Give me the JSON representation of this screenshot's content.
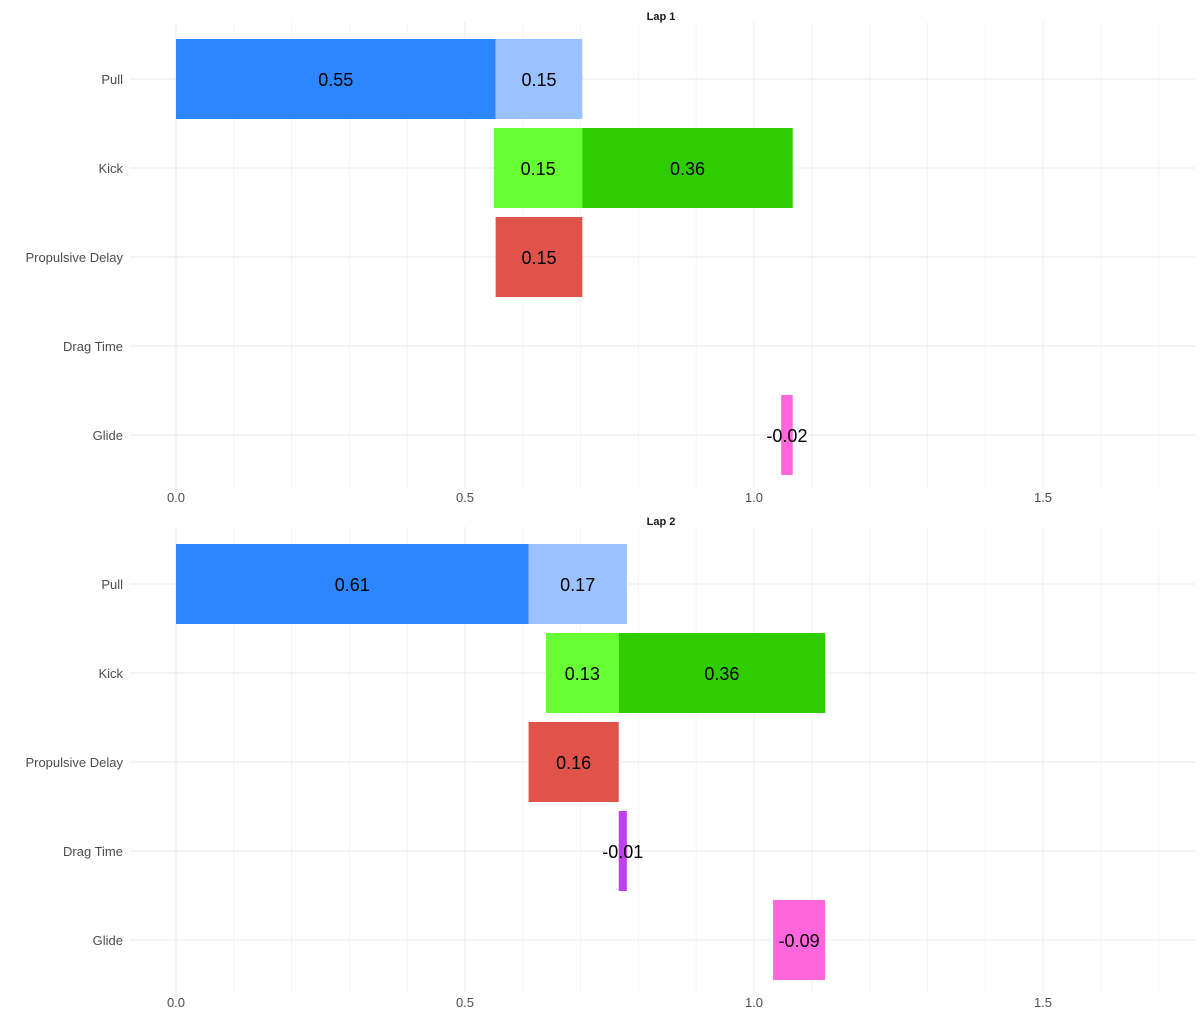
{
  "chart_data": [
    {
      "type": "bar",
      "orientation": "horizontal",
      "layout": "floating",
      "title": "Lap 1",
      "categories": [
        "Pull",
        "Kick",
        "Propulsive Delay",
        "Drag Time",
        "Glide"
      ],
      "xlim": [
        0,
        1.75
      ],
      "x_ticks": [
        "0.0",
        "0.5",
        "1.0",
        "1.5"
      ],
      "grid": true,
      "segments": [
        {
          "category": "Pull",
          "start": 0.0,
          "end": 0.553,
          "label": "0.55",
          "color": "#2e86ff"
        },
        {
          "category": "Pull",
          "start": 0.553,
          "end": 0.703,
          "label": "0.15",
          "color": "#99c2ff"
        },
        {
          "category": "Kick",
          "start": 0.55,
          "end": 0.703,
          "label": "0.15",
          "color": "#66ff33"
        },
        {
          "category": "Kick",
          "start": 0.703,
          "end": 1.067,
          "label": "0.36",
          "color": "#2ecc00"
        },
        {
          "category": "Propulsive Delay",
          "start": 0.553,
          "end": 0.703,
          "label": "0.15",
          "color": "#e0534b"
        },
        {
          "category": "Glide",
          "start": 1.047,
          "end": 1.067,
          "label": "-0.02",
          "color": "#ff66dd"
        }
      ]
    },
    {
      "type": "bar",
      "orientation": "horizontal",
      "layout": "floating",
      "title": "Lap 2",
      "categories": [
        "Pull",
        "Kick",
        "Propulsive Delay",
        "Drag Time",
        "Glide"
      ],
      "xlim": [
        0,
        1.75
      ],
      "x_ticks": [
        "0.0",
        "0.5",
        "1.0",
        "1.5"
      ],
      "grid": true,
      "segments": [
        {
          "category": "Pull",
          "start": 0.0,
          "end": 0.61,
          "label": "0.61",
          "color": "#2e86ff"
        },
        {
          "category": "Pull",
          "start": 0.61,
          "end": 0.78,
          "label": "0.17",
          "color": "#99c2ff"
        },
        {
          "category": "Kick",
          "start": 0.64,
          "end": 0.766,
          "label": "0.13",
          "color": "#66ff33"
        },
        {
          "category": "Kick",
          "start": 0.766,
          "end": 1.123,
          "label": "0.36",
          "color": "#2ecc00"
        },
        {
          "category": "Propulsive Delay",
          "start": 0.61,
          "end": 0.766,
          "label": "0.16",
          "color": "#e0534b"
        },
        {
          "category": "Drag Time",
          "start": 0.766,
          "end": 0.78,
          "label": "-0.01",
          "color": "#c040f0"
        },
        {
          "category": "Glide",
          "start": 1.033,
          "end": 1.123,
          "label": "-0.09",
          "color": "#ff66dd"
        }
      ]
    }
  ]
}
